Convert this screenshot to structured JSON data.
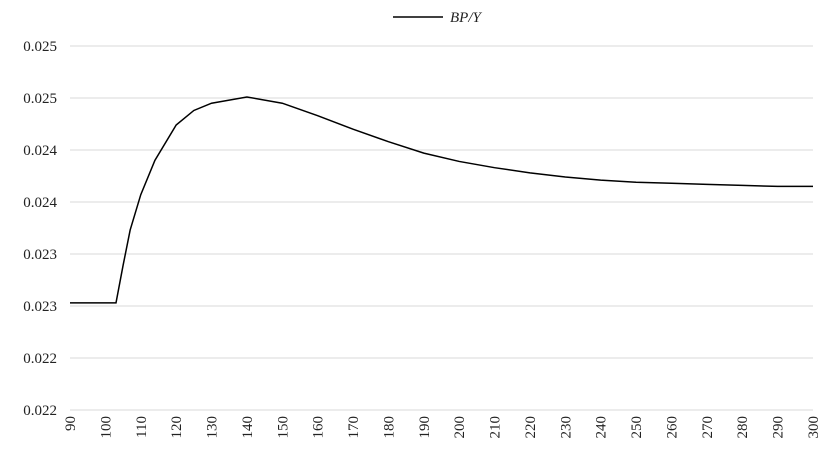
{
  "chart_data": {
    "type": "line",
    "x": [
      90,
      103,
      105,
      107,
      110,
      114,
      120,
      125,
      130,
      140,
      150,
      160,
      170,
      180,
      190,
      200,
      210,
      220,
      230,
      240,
      250,
      260,
      270,
      280,
      290,
      300
    ],
    "series": [
      {
        "name": "BP/Y",
        "color": "#000000",
        "values": [
          0.02303,
          0.02303,
          0.02339,
          0.02373,
          0.02407,
          0.0244,
          0.02474,
          0.02488,
          0.02495,
          0.02501,
          0.02495,
          0.02483,
          0.0247,
          0.02458,
          0.02447,
          0.02439,
          0.02433,
          0.02428,
          0.02424,
          0.02421,
          0.02419,
          0.02418,
          0.02417,
          0.02416,
          0.02415,
          0.02415
        ]
      }
    ],
    "xlim": [
      90,
      300
    ],
    "xticks": [
      90,
      100,
      110,
      120,
      130,
      140,
      150,
      160,
      170,
      180,
      190,
      200,
      210,
      220,
      230,
      240,
      250,
      260,
      270,
      280,
      290,
      300
    ],
    "ylim": [
      0.022,
      0.0255
    ],
    "yticks": [
      0.022,
      {
        "value": 0.0225,
        "label": "0.022"
      },
      0.023,
      {
        "value": 0.0235,
        "label": "0.023"
      },
      0.024,
      {
        "value": 0.0245,
        "label": "0.024"
      },
      0.025,
      {
        "value": 0.0255,
        "label": "0.025"
      }
    ],
    "grid": true,
    "legend": "top"
  }
}
